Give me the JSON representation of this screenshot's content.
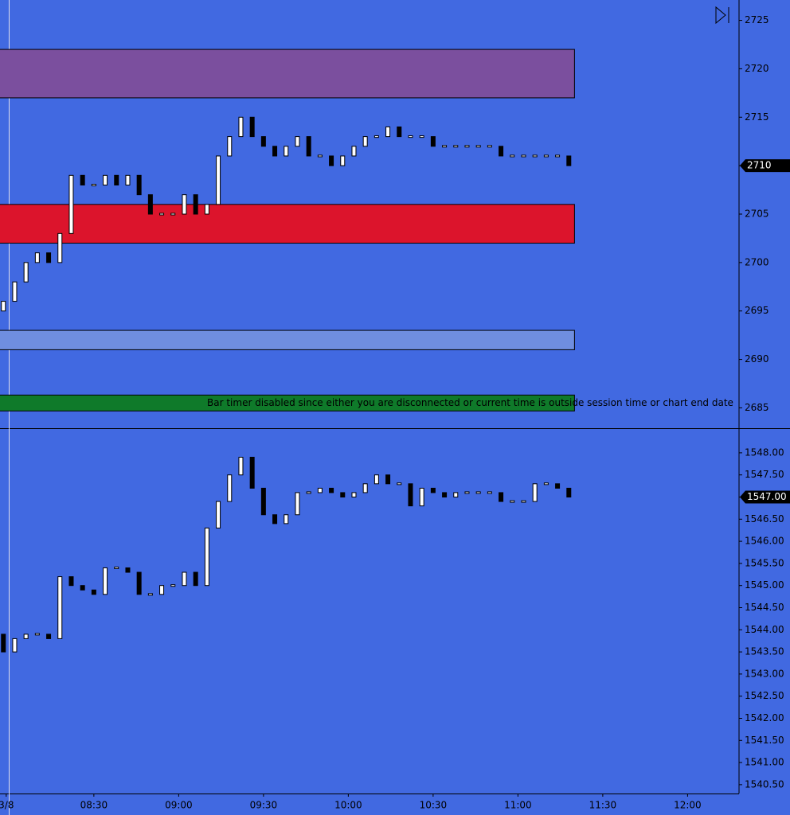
{
  "chart_data": [
    {
      "type": "candlestick",
      "x": [
        478,
        482,
        486,
        490,
        494,
        498,
        502,
        506,
        510,
        514,
        518,
        522,
        526,
        530,
        534,
        538,
        542,
        546,
        550,
        554,
        558,
        562,
        566,
        570,
        574,
        578,
        582,
        586,
        590,
        594,
        598,
        602,
        606,
        610,
        614,
        618,
        622,
        626,
        630,
        634,
        638,
        642,
        646,
        650,
        654,
        658,
        662,
        666,
        670,
        674,
        678
      ],
      "open": [
        2695,
        2696,
        2698,
        2700,
        2701,
        2700,
        2703,
        2709,
        2708,
        2708,
        2709,
        2708,
        2709,
        2707,
        2705,
        2705,
        2705,
        2707,
        2705,
        2706,
        2711,
        2713,
        2715,
        2713,
        2712,
        2711,
        2712,
        2713,
        2711,
        2711,
        2710,
        2711,
        2712,
        2713,
        2713,
        2714,
        2713,
        2713,
        2713,
        2712,
        2712,
        2712,
        2712,
        2712,
        2712,
        2711,
        2711,
        2711,
        2711,
        2711,
        2711
      ],
      "close": [
        2696,
        2698,
        2700,
        2701,
        2700,
        2703,
        2709,
        2708,
        2708,
        2709,
        2708,
        2709,
        2707,
        2705,
        2705,
        2705,
        2707,
        2705,
        2706,
        2711,
        2713,
        2715,
        2713,
        2712,
        2711,
        2712,
        2713,
        2711,
        2711,
        2710,
        2711,
        2712,
        2713,
        2713,
        2714,
        2713,
        2713,
        2713,
        2712,
        2712,
        2712,
        2712,
        2712,
        2712,
        2711,
        2711,
        2711,
        2711,
        2711,
        2711,
        2710
      ],
      "zones": [
        {
          "from": 2717,
          "to": 2722,
          "color": "#7b4f9e"
        },
        {
          "from": 2702,
          "to": 2706,
          "color": "#dc142c"
        },
        {
          "from": 2691,
          "to": 2693,
          "color": "#6f8ee0"
        }
      ],
      "ylim": [
        2682.9,
        2727.1
      ],
      "yticks": [
        2685,
        2690,
        2695,
        2700,
        2705,
        2710,
        2715,
        2720,
        2725
      ],
      "last_price": 2710,
      "annotation": "Bar timer disabled since either you are disconnected or current time is outside session time or chart end date"
    },
    {
      "type": "candlestick",
      "x": [
        478,
        482,
        486,
        490,
        494,
        498,
        502,
        506,
        510,
        514,
        518,
        522,
        526,
        530,
        534,
        538,
        542,
        546,
        550,
        554,
        558,
        562,
        566,
        570,
        574,
        578,
        582,
        586,
        590,
        594,
        598,
        602,
        606,
        610,
        614,
        618,
        622,
        626,
        630,
        634,
        638,
        642,
        646,
        650,
        654,
        658,
        662,
        666,
        670,
        674,
        678
      ],
      "open": [
        1543.9,
        1543.5,
        1543.8,
        1543.9,
        1543.9,
        1543.8,
        1545.2,
        1545,
        1544.9,
        1544.8,
        1545.4,
        1545.4,
        1545.3,
        1544.8,
        1544.8,
        1545,
        1545,
        1545.3,
        1545,
        1546.3,
        1546.9,
        1547.5,
        1547.9,
        1547.2,
        1546.6,
        1546.4,
        1546.6,
        1547.1,
        1547.1,
        1547.2,
        1547.1,
        1547,
        1547.1,
        1547.3,
        1547.5,
        1547.3,
        1547.3,
        1546.8,
        1547.2,
        1547.1,
        1547,
        1547.1,
        1547.1,
        1547.1,
        1547.1,
        1546.9,
        1546.9,
        1546.9,
        1547.3,
        1547.3,
        1547.2
      ],
      "close": [
        1543.5,
        1543.8,
        1543.9,
        1543.9,
        1543.8,
        1545.2,
        1545,
        1544.9,
        1544.8,
        1545.4,
        1545.4,
        1545.3,
        1544.8,
        1544.8,
        1545,
        1545,
        1545.3,
        1545,
        1546.3,
        1546.9,
        1547.5,
        1547.9,
        1547.2,
        1546.6,
        1546.4,
        1546.6,
        1547.1,
        1547.1,
        1547.2,
        1547.1,
        1547,
        1547.1,
        1547.3,
        1547.5,
        1547.3,
        1547.3,
        1546.8,
        1547.2,
        1547.1,
        1547,
        1547.1,
        1547.1,
        1547.1,
        1547.1,
        1546.9,
        1546.9,
        1546.9,
        1547.3,
        1547.3,
        1547.2,
        1547
      ],
      "ylim": [
        1540.3,
        1548.52
      ],
      "yticks": [
        {
          "value": 1540.5,
          "label": "1540.50"
        },
        {
          "value": 1541,
          "label": "1541.00"
        },
        {
          "value": 1541.5,
          "label": "1541.50"
        },
        {
          "value": 1542,
          "label": "1542.00"
        },
        {
          "value": 1542.5,
          "label": "1542.50"
        },
        {
          "value": 1543,
          "label": "1543.00"
        },
        {
          "value": 1543.5,
          "label": "1543.50"
        },
        {
          "value": 1544,
          "label": "1544.00"
        },
        {
          "value": 1544.5,
          "label": "1544.50"
        },
        {
          "value": 1545,
          "label": "1545.00"
        },
        {
          "value": 1545.5,
          "label": "1545.50"
        },
        {
          "value": 1546,
          "label": "1546.00"
        },
        {
          "value": 1546.5,
          "label": "1546.50"
        },
        {
          "value": 1547,
          "label": "1547.00"
        },
        {
          "value": 1547.5,
          "label": "1547.50"
        },
        {
          "value": 1548,
          "label": "1548.00"
        }
      ],
      "last_price": {
        "value": 1547,
        "label": "1547.00"
      },
      "xlim": [
        476.8,
        738.2
      ],
      "xticks": [
        {
          "value": 479,
          "label": "3/8"
        },
        {
          "value": 510,
          "label": "08:30"
        },
        {
          "value": 540,
          "label": "09:00"
        },
        {
          "value": 570,
          "label": "09:30"
        },
        {
          "value": 600,
          "label": "10:00"
        },
        {
          "value": 630,
          "label": "10:30"
        },
        {
          "value": 660,
          "label": "11:00"
        },
        {
          "value": 690,
          "label": "11:30"
        },
        {
          "value": 720,
          "label": "12:00"
        }
      ]
    }
  ]
}
